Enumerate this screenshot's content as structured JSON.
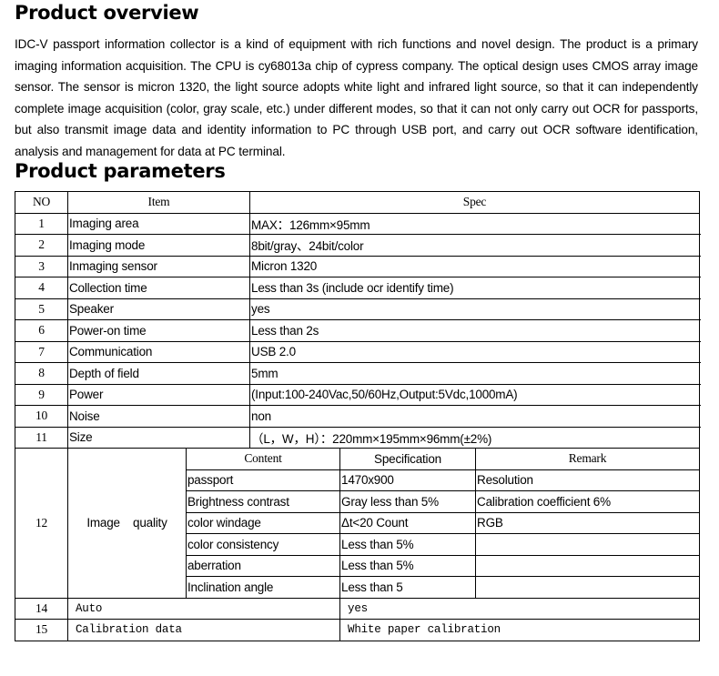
{
  "overview": {
    "title": "Product overview",
    "text": "IDC-V passport information collector is a kind of equipment with rich functions and novel design. The product is a primary imaging information acquisition. The CPU is cy68013a chip of cypress company. The optical design uses CMOS array image sensor. The sensor is micron 1320, the light source adopts white light and infrared light source, so that it can independently complete image acquisition (color, gray scale, etc.) under different modes, so that it can not only carry out OCR for passports, but also transmit image data and identity information to PC through USB port, and carry out OCR software identification, analysis and management for data at PC terminal."
  },
  "parameters": {
    "title": "Product parameters",
    "headers": {
      "no": "NO",
      "item": "Item",
      "spec": "Spec"
    },
    "rows": [
      {
        "no": "1",
        "item": "Imaging area",
        "spec": "MAX：126mm×95mm"
      },
      {
        "no": "2",
        "item": "Imaging mode",
        "spec": "8bit/gray、24bit/color"
      },
      {
        "no": "3",
        "item": "Inmaging sensor",
        "spec": "Micron 1320"
      },
      {
        "no": "4",
        "item": "Collection time",
        "spec": "Less than 3s (include ocr identify time)"
      },
      {
        "no": "5",
        "item": "Speaker",
        "spec": "yes"
      },
      {
        "no": "6",
        "item": "Power-on time",
        "spec": "Less than 2s"
      },
      {
        "no": "7",
        "item": "Communication",
        "spec": "USB 2.0"
      },
      {
        "no": "8",
        "item": "Depth of field",
        "spec": "5mm"
      },
      {
        "no": "9",
        "item": "Power",
        "spec": "(Input:100-240Vac,50/60Hz,Output:5Vdc,1000mA)"
      },
      {
        "no": "10",
        "item": "Noise",
        "spec": "non"
      },
      {
        "no": "11",
        "item": "Size",
        "spec": "（L，W，H）：220mm×195mm×96mm(±2%)"
      }
    ],
    "quality": {
      "no": "12",
      "item": "Image    quality",
      "headers": {
        "content": "Content",
        "spec": "Specification",
        "remark": "Remark"
      },
      "rows": [
        {
          "content": "passport",
          "spec": "1470x900",
          "remark": "Resolution"
        },
        {
          "content": "Brightness contrast",
          "spec": "Gray less than 5%",
          "remark": "Calibration coefficient 6%"
        },
        {
          "content": "color windage",
          "spec": "Δt<20 Count",
          "remark": "RGB"
        },
        {
          "content": "color consistency",
          "spec": "Less than 5%",
          "remark": ""
        },
        {
          "content": "aberration",
          "spec": "Less than 5%",
          "remark": ""
        },
        {
          "content": "Inclination angle",
          "spec": "Less than 5",
          "remark": ""
        }
      ]
    },
    "extra": [
      {
        "no": "14",
        "item": "Auto",
        "spec": "yes"
      },
      {
        "no": "15",
        "item": "Calibration data",
        "spec": "White paper calibration"
      }
    ]
  }
}
